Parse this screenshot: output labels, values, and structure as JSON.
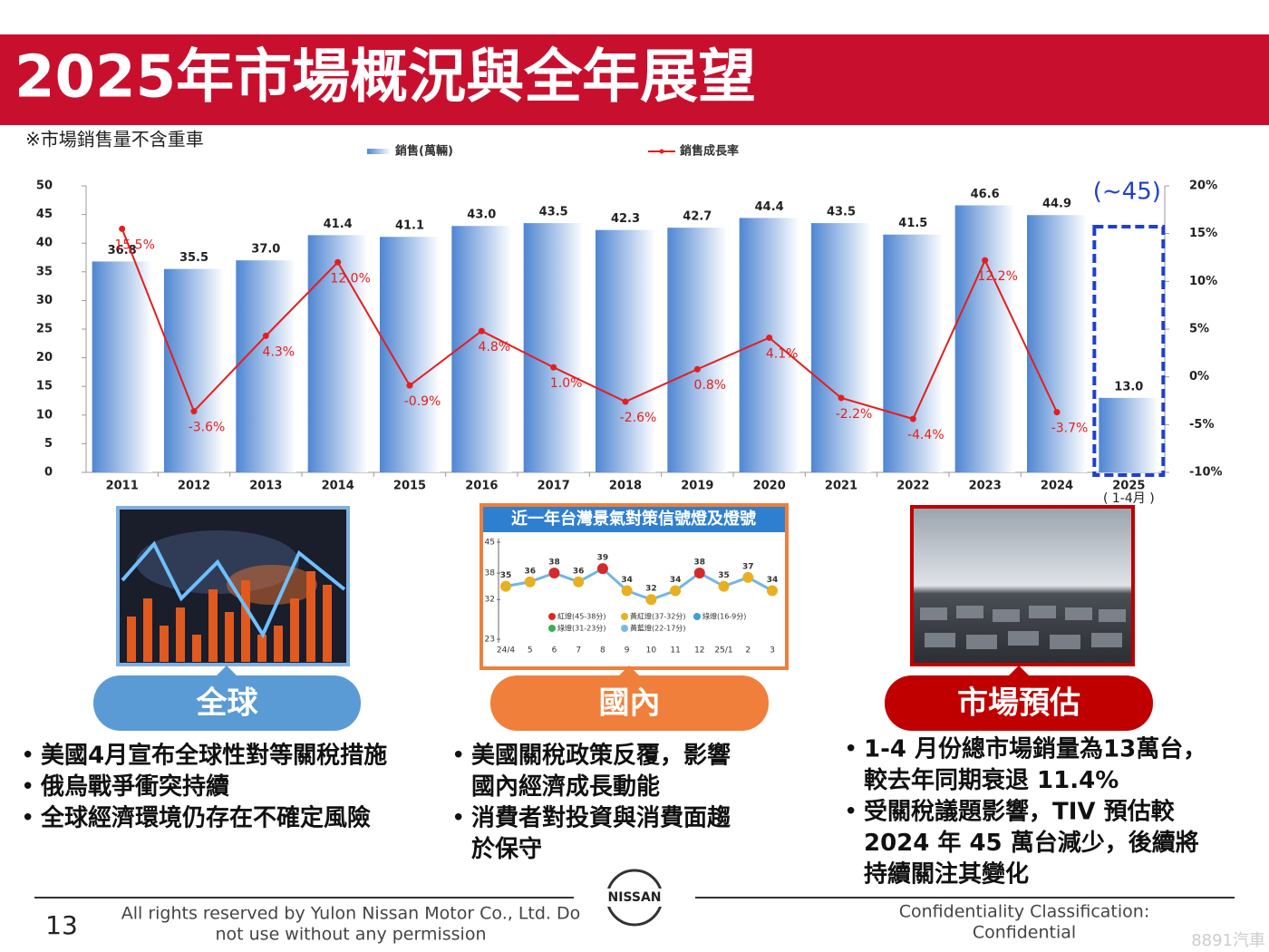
{
  "header": {
    "title": "2025年市場概況與全年展望"
  },
  "chart_data": [
    {
      "type": "bar",
      "note": "※市場銷售量不含重車",
      "categories": [
        "2011",
        "2012",
        "2013",
        "2014",
        "2015",
        "2016",
        "2017",
        "2018",
        "2019",
        "2020",
        "2021",
        "2022",
        "2023",
        "2024",
        "2025"
      ],
      "x_note": "( 1-4月 )",
      "series": [
        {
          "name": "銷售(萬輛)",
          "color": "#4f86d2",
          "values": [
            36.8,
            35.5,
            37.0,
            41.4,
            41.1,
            43.0,
            43.5,
            42.3,
            42.7,
            44.4,
            43.5,
            41.5,
            46.6,
            44.9,
            13.0
          ],
          "value_labels": [
            "36.8",
            "35.5",
            "37.0",
            "41.4",
            "41.1",
            "43.0",
            "43.5",
            "42.3",
            "42.7",
            "44.4",
            "43.5",
            "41.5",
            "46.6",
            "44.9",
            "13.0"
          ]
        },
        {
          "name": "銷售成長率",
          "color": "#e41e1e",
          "axis": "y2",
          "values": [
            15.5,
            -3.6,
            4.3,
            12.0,
            -0.9,
            4.8,
            1.0,
            -2.6,
            0.8,
            4.1,
            -2.2,
            -4.4,
            12.2,
            -3.7,
            null
          ],
          "value_labels": [
            "15.5%",
            "-3.6%",
            "4.3%",
            "12.0%",
            "-0.9%",
            "4.8%",
            "1.0%",
            "-2.6%",
            "0.8%",
            "4.1%",
            "-2.2%",
            "-4.4%",
            "12.2%",
            "-3.7%",
            null
          ]
        }
      ],
      "ylim": [
        0,
        50
      ],
      "yticks": [
        0,
        5,
        10,
        15,
        20,
        25,
        30,
        35,
        40,
        45,
        50
      ],
      "y2lim": [
        -10,
        20
      ],
      "y2ticks": [
        {
          "value": -10,
          "label": "-10%"
        },
        {
          "value": -5,
          "label": "-5%"
        },
        {
          "value": 0,
          "label": "0%"
        },
        {
          "value": 5,
          "label": "5%"
        },
        {
          "value": 10,
          "label": "10%"
        },
        {
          "value": 15,
          "label": "15%"
        },
        {
          "value": 20,
          "label": "20%"
        }
      ],
      "annotation": "(~45)",
      "annotation_color": "#1f3fd0"
    },
    {
      "type": "line",
      "title": "近一年台灣景氣對策信號燈及燈號",
      "categories": [
        "24/4",
        "5",
        "6",
        "7",
        "8",
        "9",
        "10",
        "11",
        "12",
        "25/1",
        "2",
        "3"
      ],
      "values": [
        35,
        36,
        38,
        36,
        39,
        34,
        32,
        34,
        38,
        35,
        37,
        34
      ],
      "point_colors": [
        "#e8b020",
        "#e8b020",
        "#d62a2a",
        "#e8b020",
        "#d62a2a",
        "#e8b020",
        "#e8b020",
        "#e8b020",
        "#d62a2a",
        "#e8b020",
        "#e8b020",
        "#e8b020"
      ],
      "ylim": [
        23,
        45
      ],
      "yticks": [
        23,
        32,
        38,
        45
      ],
      "legend": [
        "紅燈(45-38分)",
        "黃紅燈(37-32分)",
        "綠燈(16-9分)",
        "綠燈(31-23分)",
        "黃藍燈(22-17分)"
      ]
    }
  ],
  "panels": [
    {
      "label": "全球",
      "color": "#5b9bd5",
      "items": [
        [
          "美國4月宣布全球性對等關稅措施"
        ],
        [
          "俄烏戰爭衝突持續"
        ],
        [
          "全球經濟環境仍存在不確定風險"
        ]
      ]
    },
    {
      "label": "國內",
      "color": "#ef7f3a",
      "items": [
        [
          "美國關稅政策反覆，影響",
          "國內經濟成長動能"
        ],
        [
          "消費者對投資與消費面趨",
          "於保守"
        ]
      ]
    },
    {
      "label": "市場預估",
      "color": "#c00000",
      "items": [
        [
          "1-4 月份總市場銷量為13萬台，",
          "較去年同期衰退 11.4%"
        ],
        [
          "受關稅議題影響，TIV 預估較",
          "2024 年 45 萬台減少，後續將",
          "持續關注其變化"
        ]
      ]
    }
  ],
  "footer": {
    "page": "13",
    "copyright": [
      "All rights reserved by Yulon Nissan Motor Co., Ltd. Do",
      "not use without any permission"
    ],
    "logo": "NISSAN",
    "classification": [
      "Confidentiality Classification:",
      "Confidential"
    ],
    "watermark": "8891汽車"
  }
}
